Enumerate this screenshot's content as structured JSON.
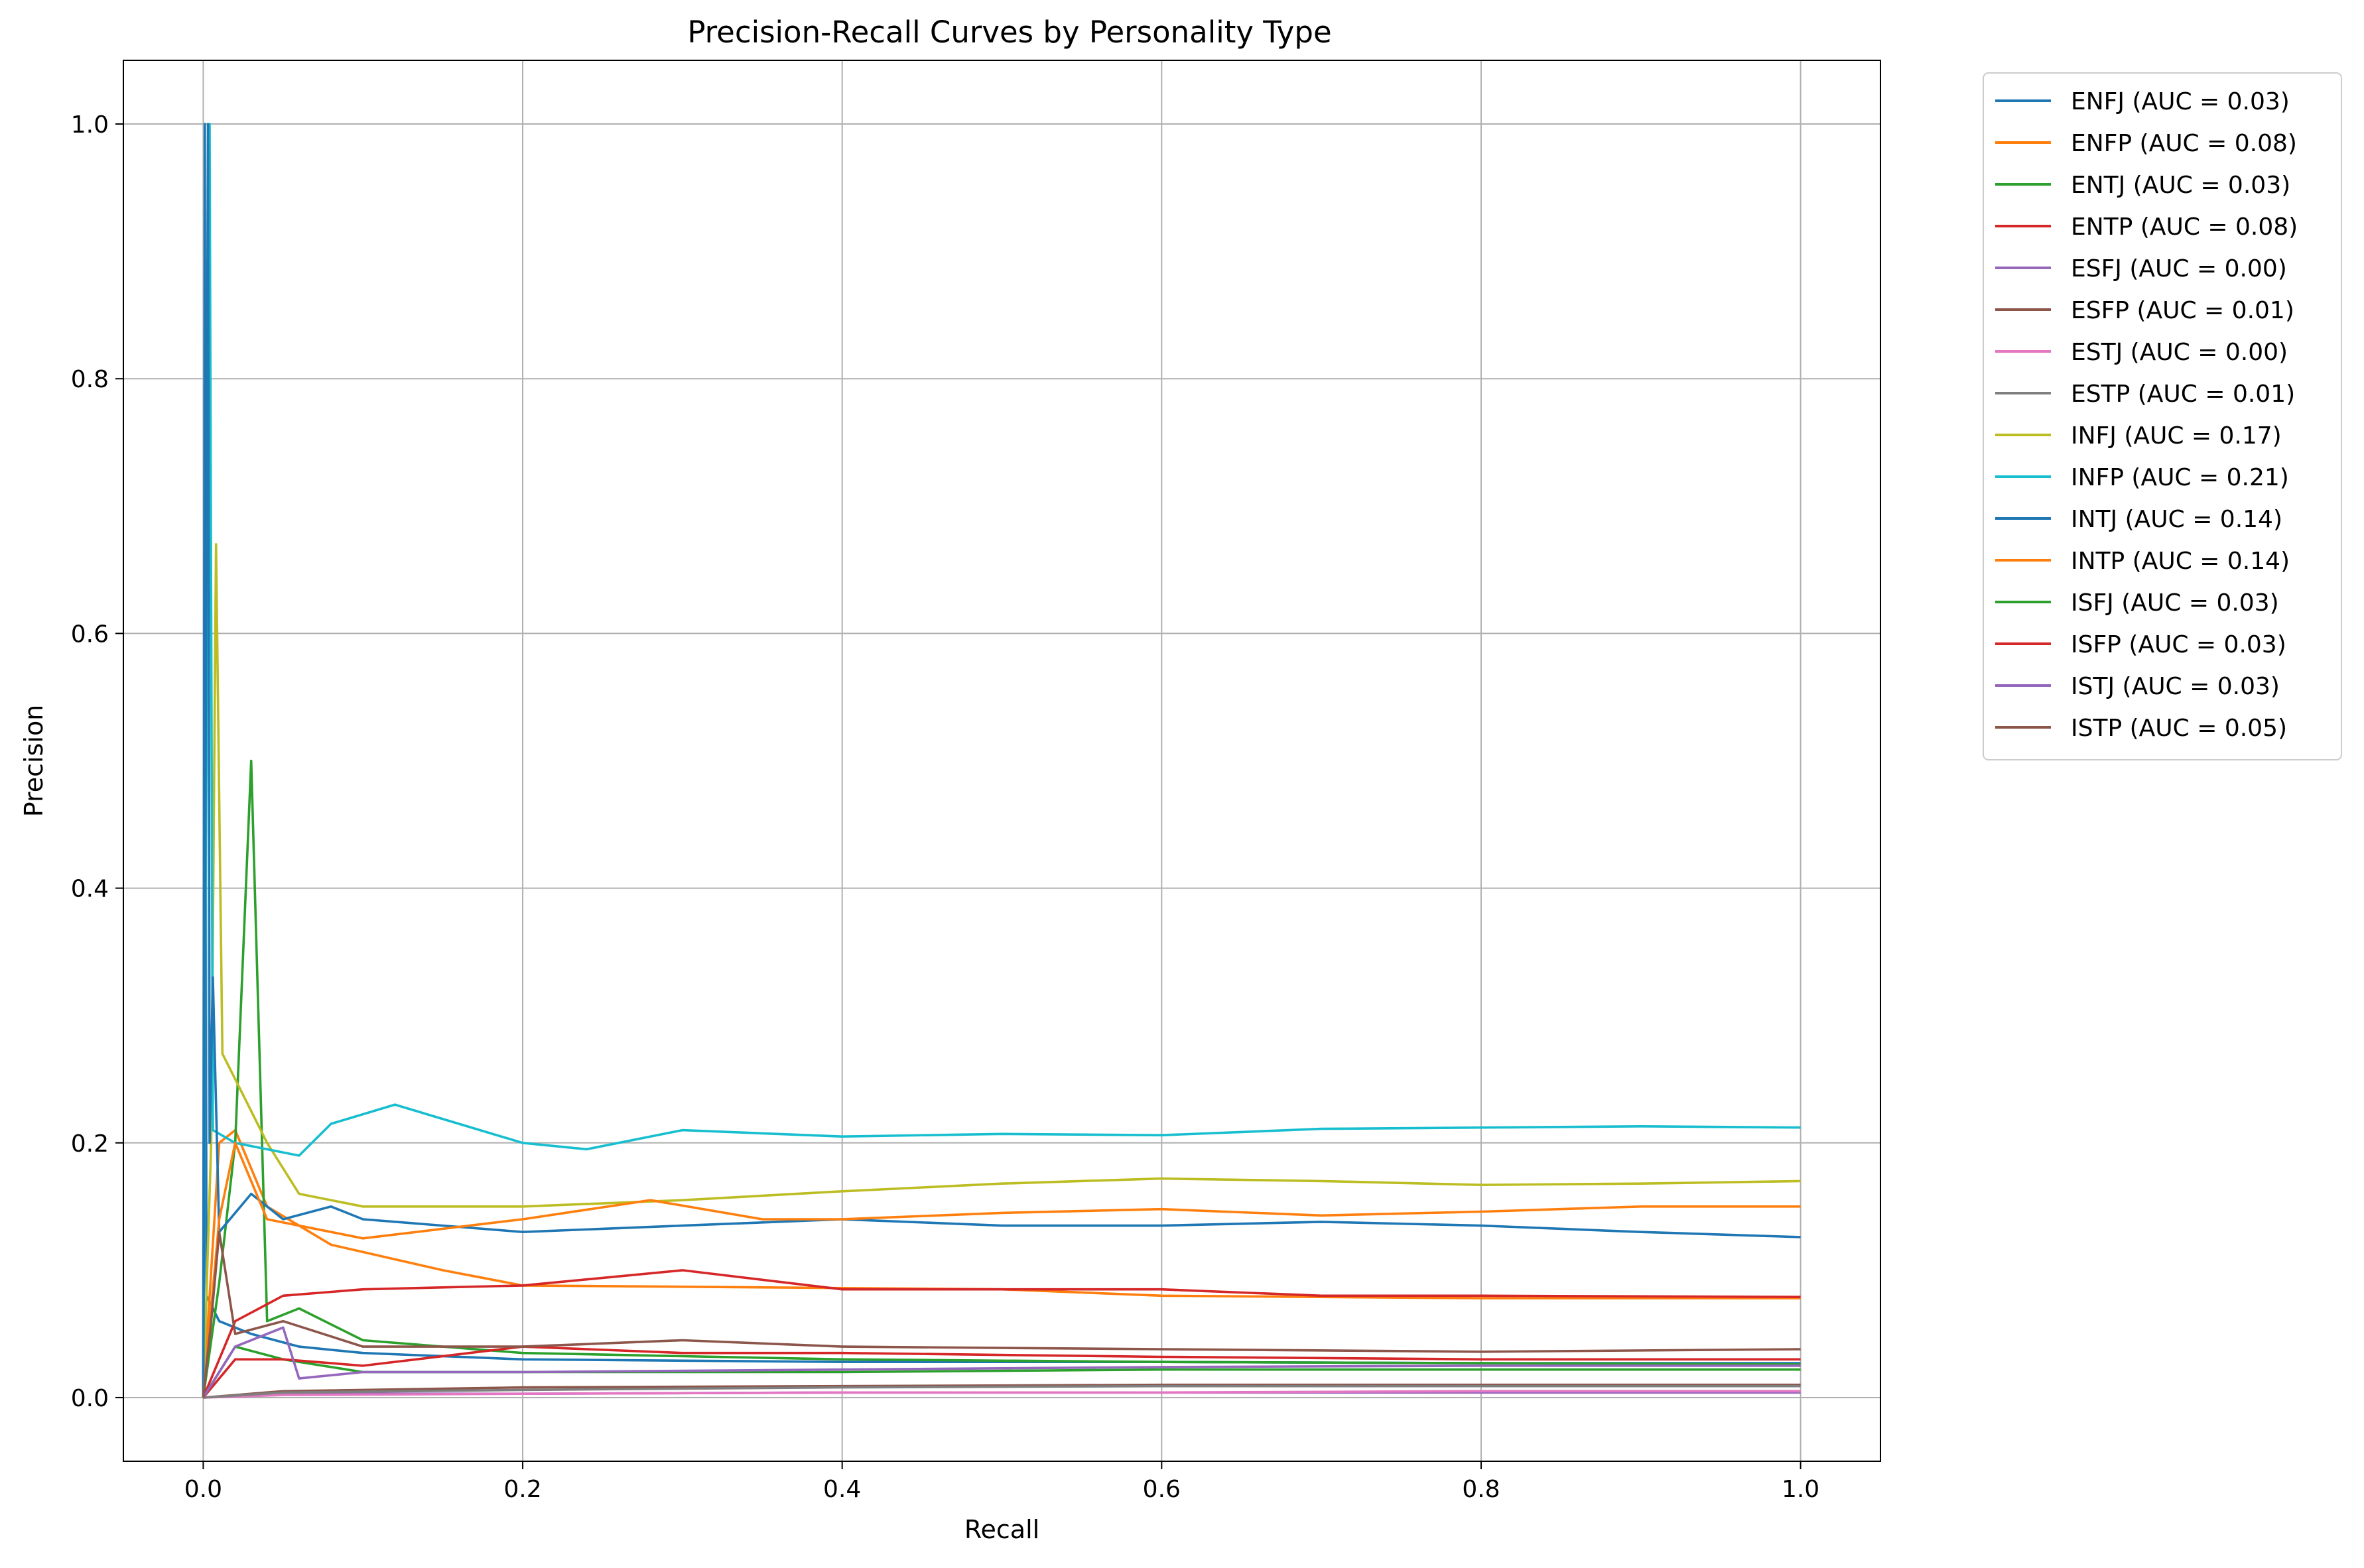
{
  "chart_data": {
    "type": "line",
    "title": "Precision-Recall Curves by Personality Type",
    "xlabel": "Recall",
    "ylabel": "Precision",
    "xlim": [
      -0.05,
      1.05
    ],
    "ylim": [
      -0.05,
      1.05
    ],
    "xticks": [
      0.0,
      0.2,
      0.4,
      0.6,
      0.8,
      1.0
    ],
    "xtick_labels": [
      "0.0",
      "0.2",
      "0.4",
      "0.6",
      "0.8",
      "1.0"
    ],
    "yticks": [
      0.0,
      0.2,
      0.4,
      0.6,
      0.8,
      1.0
    ],
    "ytick_labels": [
      "0.0",
      "0.2",
      "0.4",
      "0.6",
      "0.8",
      "1.0"
    ],
    "grid": true,
    "legend_position": "outside upper right",
    "series": [
      {
        "name": "ENFJ (AUC = 0.03)",
        "color": "#1f77b4",
        "points": [
          [
            0,
            0
          ],
          [
            0.001,
            1.0
          ],
          [
            0.002,
            0.08
          ],
          [
            0.01,
            0.06
          ],
          [
            0.03,
            0.05
          ],
          [
            0.06,
            0.04
          ],
          [
            0.1,
            0.035
          ],
          [
            0.2,
            0.03
          ],
          [
            0.4,
            0.028
          ],
          [
            0.6,
            0.028
          ],
          [
            0.8,
            0.027
          ],
          [
            1.0,
            0.027
          ]
        ]
      },
      {
        "name": "ENFP (AUC = 0.08)",
        "color": "#ff7f0e",
        "points": [
          [
            0,
            0
          ],
          [
            0.01,
            0.2
          ],
          [
            0.02,
            0.21
          ],
          [
            0.04,
            0.15
          ],
          [
            0.08,
            0.12
          ],
          [
            0.15,
            0.1
          ],
          [
            0.2,
            0.088
          ],
          [
            0.3,
            0.087
          ],
          [
            0.5,
            0.085
          ],
          [
            0.6,
            0.08
          ],
          [
            0.8,
            0.078
          ],
          [
            1.0,
            0.078
          ]
        ]
      },
      {
        "name": "ENTJ (AUC = 0.03)",
        "color": "#2ca02c",
        "points": [
          [
            0,
            0
          ],
          [
            0.01,
            0.09
          ],
          [
            0.02,
            0.2
          ],
          [
            0.03,
            0.5
          ],
          [
            0.04,
            0.06
          ],
          [
            0.06,
            0.07
          ],
          [
            0.1,
            0.045
          ],
          [
            0.2,
            0.035
          ],
          [
            0.4,
            0.03
          ],
          [
            0.6,
            0.028
          ],
          [
            0.8,
            0.027
          ],
          [
            1.0,
            0.026
          ]
        ]
      },
      {
        "name": "ENTP (AUC = 0.08)",
        "color": "#d62728",
        "points": [
          [
            0,
            0
          ],
          [
            0.02,
            0.06
          ],
          [
            0.05,
            0.08
          ],
          [
            0.1,
            0.085
          ],
          [
            0.2,
            0.088
          ],
          [
            0.3,
            0.1
          ],
          [
            0.4,
            0.085
          ],
          [
            0.5,
            0.085
          ],
          [
            0.6,
            0.085
          ],
          [
            0.7,
            0.08
          ],
          [
            0.8,
            0.08
          ],
          [
            1.0,
            0.079
          ]
        ]
      },
      {
        "name": "ESFJ (AUC = 0.00)",
        "color": "#9467bd",
        "points": [
          [
            0,
            0
          ],
          [
            0.05,
            0.003
          ],
          [
            0.2,
            0.003
          ],
          [
            0.4,
            0.004
          ],
          [
            0.6,
            0.004
          ],
          [
            0.8,
            0.004
          ],
          [
            1.0,
            0.004
          ]
        ]
      },
      {
        "name": "ESFP (AUC = 0.01)",
        "color": "#8c564b",
        "points": [
          [
            0,
            0
          ],
          [
            0.05,
            0.005
          ],
          [
            0.2,
            0.008
          ],
          [
            0.4,
            0.009
          ],
          [
            0.6,
            0.01
          ],
          [
            0.8,
            0.01
          ],
          [
            1.0,
            0.01
          ]
        ]
      },
      {
        "name": "ESTJ (AUC = 0.00)",
        "color": "#e377c2",
        "points": [
          [
            0,
            0
          ],
          [
            0.05,
            0.002
          ],
          [
            0.2,
            0.003
          ],
          [
            0.4,
            0.004
          ],
          [
            0.6,
            0.004
          ],
          [
            0.8,
            0.005
          ],
          [
            1.0,
            0.005
          ]
        ]
      },
      {
        "name": "ESTP (AUC = 0.01)",
        "color": "#7f7f7f",
        "points": [
          [
            0,
            0
          ],
          [
            0.05,
            0.004
          ],
          [
            0.2,
            0.006
          ],
          [
            0.4,
            0.008
          ],
          [
            0.6,
            0.009
          ],
          [
            0.8,
            0.009
          ],
          [
            1.0,
            0.009
          ]
        ]
      },
      {
        "name": "INFJ (AUC = 0.17)",
        "color": "#bcbd22",
        "points": [
          [
            0,
            0
          ],
          [
            0.005,
            0.2
          ],
          [
            0.008,
            0.67
          ],
          [
            0.012,
            0.27
          ],
          [
            0.02,
            0.25
          ],
          [
            0.04,
            0.2
          ],
          [
            0.06,
            0.16
          ],
          [
            0.1,
            0.15
          ],
          [
            0.2,
            0.15
          ],
          [
            0.3,
            0.155
          ],
          [
            0.4,
            0.162
          ],
          [
            0.5,
            0.168
          ],
          [
            0.6,
            0.172
          ],
          [
            0.7,
            0.17
          ],
          [
            0.8,
            0.167
          ],
          [
            0.9,
            0.168
          ],
          [
            1.0,
            0.17
          ]
        ]
      },
      {
        "name": "INFP (AUC = 0.21)",
        "color": "#17becf",
        "points": [
          [
            0,
            0
          ],
          [
            0.004,
            1.0
          ],
          [
            0.006,
            0.21
          ],
          [
            0.02,
            0.2
          ],
          [
            0.06,
            0.19
          ],
          [
            0.08,
            0.215
          ],
          [
            0.12,
            0.23
          ],
          [
            0.16,
            0.215
          ],
          [
            0.2,
            0.2
          ],
          [
            0.24,
            0.195
          ],
          [
            0.3,
            0.21
          ],
          [
            0.4,
            0.205
          ],
          [
            0.5,
            0.207
          ],
          [
            0.6,
            0.206
          ],
          [
            0.7,
            0.211
          ],
          [
            0.8,
            0.212
          ],
          [
            0.9,
            0.213
          ],
          [
            1.0,
            0.212
          ]
        ]
      },
      {
        "name": "INTJ (AUC = 0.14)",
        "color": "#1f77b4",
        "points": [
          [
            0,
            0
          ],
          [
            0.003,
            1.0
          ],
          [
            0.004,
            0.2
          ],
          [
            0.006,
            0.33
          ],
          [
            0.01,
            0.13
          ],
          [
            0.03,
            0.16
          ],
          [
            0.05,
            0.14
          ],
          [
            0.08,
            0.15
          ],
          [
            0.1,
            0.14
          ],
          [
            0.2,
            0.13
          ],
          [
            0.3,
            0.135
          ],
          [
            0.4,
            0.14
          ],
          [
            0.5,
            0.135
          ],
          [
            0.6,
            0.135
          ],
          [
            0.7,
            0.138
          ],
          [
            0.8,
            0.135
          ],
          [
            0.9,
            0.13
          ],
          [
            1.0,
            0.126
          ]
        ]
      },
      {
        "name": "INTP (AUC = 0.14)",
        "color": "#ff7f0e",
        "points": [
          [
            0,
            0
          ],
          [
            0.01,
            0.14
          ],
          [
            0.02,
            0.2
          ],
          [
            0.04,
            0.14
          ],
          [
            0.08,
            0.13
          ],
          [
            0.1,
            0.125
          ],
          [
            0.2,
            0.14
          ],
          [
            0.28,
            0.155
          ],
          [
            0.35,
            0.14
          ],
          [
            0.4,
            0.14
          ],
          [
            0.5,
            0.145
          ],
          [
            0.6,
            0.148
          ],
          [
            0.7,
            0.143
          ],
          [
            0.8,
            0.146
          ],
          [
            0.9,
            0.15
          ],
          [
            1.0,
            0.15
          ]
        ]
      },
      {
        "name": "ISFJ (AUC = 0.03)",
        "color": "#2ca02c",
        "points": [
          [
            0,
            0
          ],
          [
            0.02,
            0.04
          ],
          [
            0.05,
            0.03
          ],
          [
            0.1,
            0.02
          ],
          [
            0.2,
            0.02
          ],
          [
            0.4,
            0.02
          ],
          [
            0.6,
            0.022
          ],
          [
            0.8,
            0.022
          ],
          [
            1.0,
            0.022
          ]
        ]
      },
      {
        "name": "ISFP (AUC = 0.03)",
        "color": "#d62728",
        "points": [
          [
            0,
            0
          ],
          [
            0.02,
            0.03
          ],
          [
            0.05,
            0.03
          ],
          [
            0.1,
            0.025
          ],
          [
            0.2,
            0.04
          ],
          [
            0.3,
            0.035
          ],
          [
            0.4,
            0.035
          ],
          [
            0.6,
            0.032
          ],
          [
            0.8,
            0.03
          ],
          [
            1.0,
            0.03
          ]
        ]
      },
      {
        "name": "ISTJ (AUC = 0.03)",
        "color": "#9467bd",
        "points": [
          [
            0,
            0
          ],
          [
            0.02,
            0.04
          ],
          [
            0.05,
            0.055
          ],
          [
            0.06,
            0.015
          ],
          [
            0.1,
            0.02
          ],
          [
            0.2,
            0.02
          ],
          [
            0.4,
            0.022
          ],
          [
            0.6,
            0.024
          ],
          [
            0.8,
            0.025
          ],
          [
            1.0,
            0.025
          ]
        ]
      },
      {
        "name": "ISTP (AUC = 0.05)",
        "color": "#8c564b",
        "points": [
          [
            0,
            0
          ],
          [
            0.005,
            0.06
          ],
          [
            0.01,
            0.13
          ],
          [
            0.02,
            0.05
          ],
          [
            0.05,
            0.06
          ],
          [
            0.1,
            0.04
          ],
          [
            0.2,
            0.04
          ],
          [
            0.3,
            0.045
          ],
          [
            0.4,
            0.04
          ],
          [
            0.6,
            0.038
          ],
          [
            0.8,
            0.036
          ],
          [
            1.0,
            0.038
          ]
        ]
      }
    ]
  }
}
